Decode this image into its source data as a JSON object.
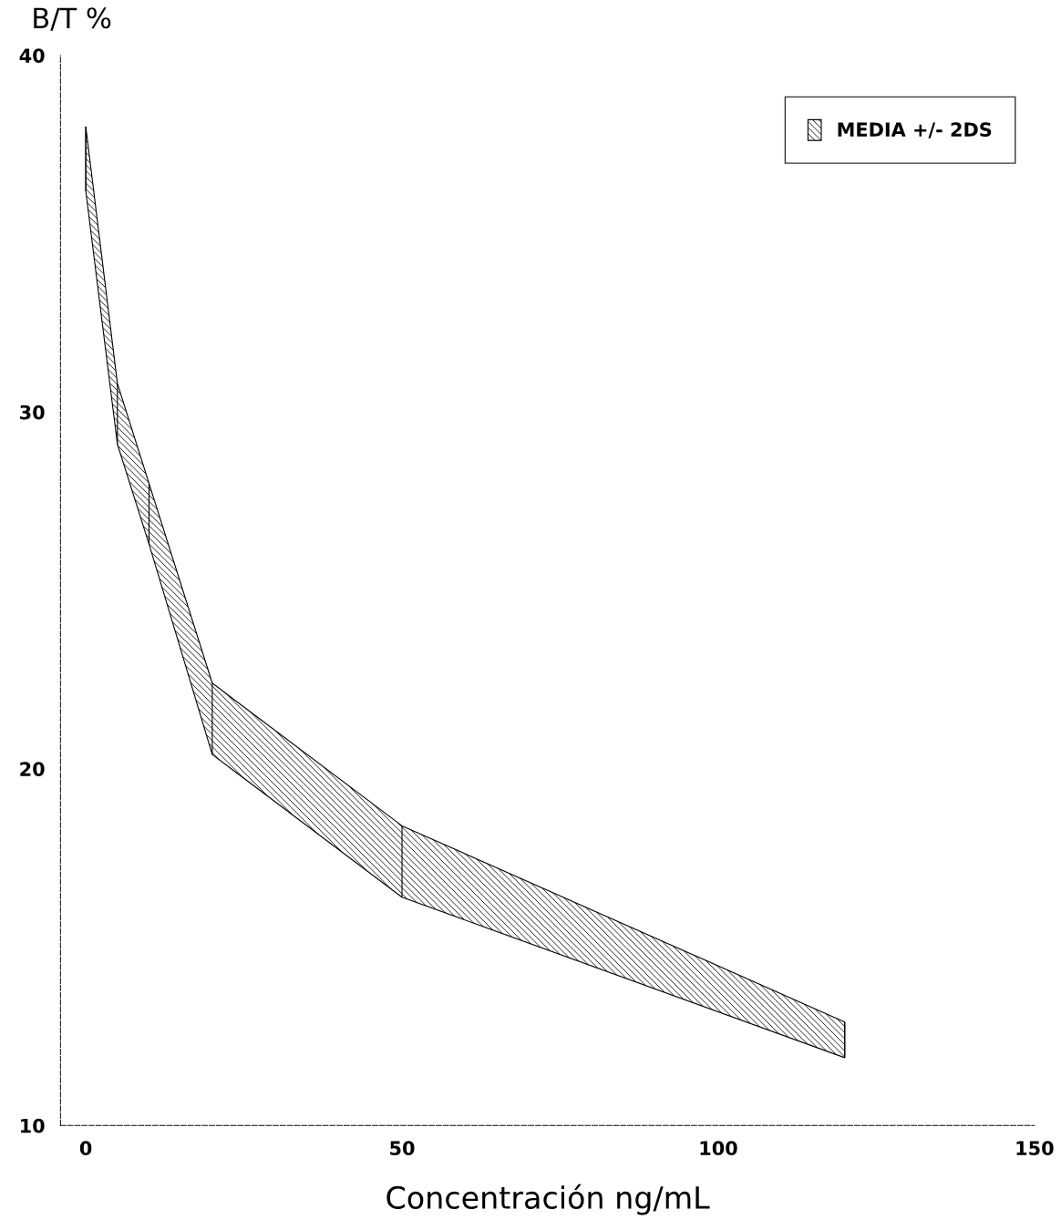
{
  "chart_data": {
    "type": "area",
    "xlabel": "Concentración ng/mL",
    "ylabel": "B/T %",
    "x": [
      0,
      5,
      10,
      20,
      50,
      120
    ],
    "series": [
      {
        "name": "MEDIA +/- 2DS",
        "color": "#000000",
        "values": [
          38.0,
          30.8,
          28.0,
          22.4,
          18.4,
          12.9
        ],
        "errors": [
          [
            36.2,
            38.0
          ],
          [
            29.1,
            30.8
          ],
          [
            26.3,
            28.0
          ],
          [
            20.4,
            22.4
          ],
          [
            16.4,
            18.4
          ],
          [
            11.9,
            12.9
          ]
        ]
      }
    ],
    "xlim": [
      -4,
      150
    ],
    "xticks": [
      0,
      50,
      100,
      150
    ],
    "ylim": [
      10,
      40
    ],
    "yticks": [
      10,
      20,
      30,
      40
    ],
    "grid": false,
    "legend": "top right"
  }
}
